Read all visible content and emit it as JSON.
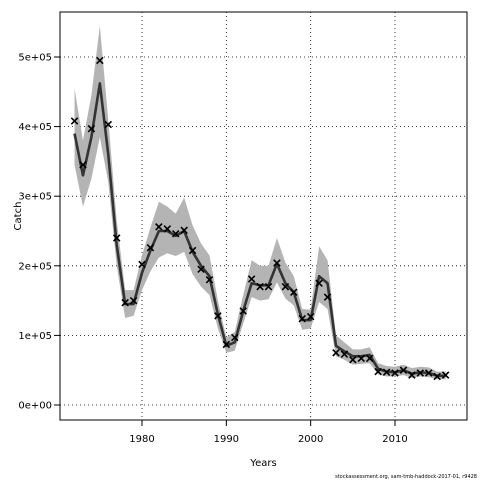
{
  "chart_data": {
    "type": "line",
    "title": "",
    "xlabel": "Years",
    "ylabel": "Catch",
    "xlim": [
      1970.3,
      1975.3
    ],
    "ylim": [
      -24000,
      565000
    ],
    "x_ticks": [
      1980,
      1990,
      2000,
      2010
    ],
    "x_tick_labels": [
      "1980",
      "1990",
      "2000",
      "2010"
    ],
    "y_ticks": [
      0,
      100000,
      200000,
      300000,
      400000,
      500000
    ],
    "y_tick_labels": [
      "0e+00",
      "1e+05",
      "2e+05",
      "3e+05",
      "4e+05",
      "5e+05"
    ],
    "grid": true,
    "footer": "stockassessment.org, sam-tmb-haddock-2017-01, r9428",
    "colors": {
      "band": "#b4b4b4",
      "line": "#333333",
      "observed": "#000000"
    },
    "series": [
      {
        "type": "band-line",
        "x": [
          1972,
          1973,
          1974,
          1975,
          1976,
          1977,
          1978,
          1979,
          1980,
          1981,
          1982,
          1983,
          1984,
          1985,
          1986,
          1987,
          1988,
          1989,
          1990,
          1991,
          1992,
          1993,
          1994,
          1995,
          1996,
          1997,
          1998,
          1999,
          2000,
          2001,
          2002,
          2003,
          2004,
          2005,
          2006,
          2007,
          2008,
          2009,
          2010,
          2011,
          2012,
          2013,
          2014,
          2015,
          2016
        ],
        "values": [
          390000,
          330000,
          385000,
          462000,
          360000,
          230000,
          145000,
          145000,
          190000,
          222000,
          250000,
          250000,
          243000,
          250000,
          220000,
          200000,
          185000,
          130000,
          85000,
          90000,
          135000,
          175000,
          172000,
          172000,
          203000,
          175000,
          162000,
          122000,
          122000,
          185000,
          175000,
          85000,
          77000,
          70000,
          70000,
          72000,
          52000,
          48000,
          47000,
          50000,
          45000,
          47000,
          46000,
          42000,
          42000
        ],
        "lower": [
          345000,
          285000,
          325000,
          385000,
          320000,
          200000,
          125000,
          128000,
          165000,
          192000,
          212000,
          218000,
          214000,
          220000,
          188000,
          170000,
          158000,
          110000,
          75000,
          78000,
          117000,
          155000,
          150000,
          152000,
          176000,
          153000,
          143000,
          108000,
          110000,
          148000,
          138000,
          70000,
          65000,
          58000,
          59000,
          60000,
          44000,
          41000,
          41000,
          43000,
          39000,
          41000,
          40000,
          37000,
          37000
        ],
        "upper": [
          455000,
          380000,
          445000,
          545000,
          410000,
          265000,
          165000,
          165000,
          215000,
          255000,
          292000,
          285000,
          275000,
          298000,
          258000,
          232000,
          215000,
          150000,
          97000,
          105000,
          158000,
          208000,
          200000,
          200000,
          240000,
          205000,
          185000,
          138000,
          137000,
          228000,
          208000,
          100000,
          90000,
          80000,
          80000,
          83000,
          60000,
          56000,
          55000,
          58000,
          53000,
          55000,
          54000,
          48000,
          48000
        ]
      },
      {
        "type": "points",
        "marker": "x",
        "x": [
          1972,
          1973,
          1974,
          1975,
          1976,
          1977,
          1978,
          1979,
          1980,
          1981,
          1982,
          1983,
          1984,
          1985,
          1986,
          1987,
          1988,
          1989,
          1990,
          1991,
          1992,
          1993,
          1994,
          1995,
          1996,
          1997,
          1998,
          1999,
          2000,
          2001,
          2002,
          2003,
          2004,
          2005,
          2006,
          2007,
          2008,
          2009,
          2010,
          2011,
          2012,
          2013,
          2014,
          2015,
          2016
        ],
        "values": [
          408000,
          345000,
          397000,
          495000,
          403000,
          240000,
          147000,
          150000,
          202000,
          226000,
          256000,
          253000,
          246000,
          251000,
          222000,
          195000,
          180000,
          128000,
          87000,
          97000,
          135000,
          181000,
          170000,
          170000,
          204000,
          170000,
          162000,
          124000,
          127000,
          175000,
          155000,
          75000,
          73000,
          65000,
          67000,
          67000,
          48000,
          47000,
          46000,
          50000,
          43000,
          46000,
          46000,
          41000,
          43000
        ]
      }
    ]
  }
}
